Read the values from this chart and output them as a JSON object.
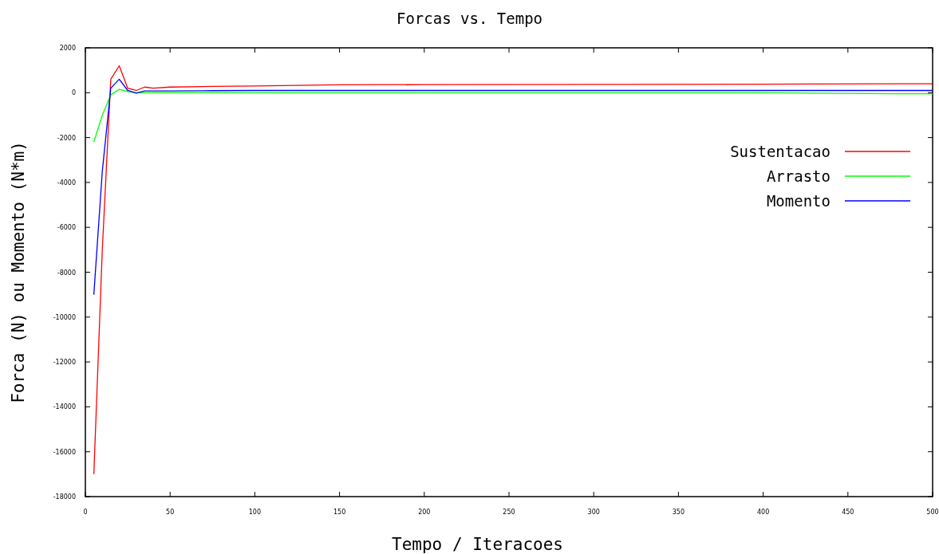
{
  "chart_data": {
    "type": "line",
    "title": "Forcas vs. Tempo",
    "xlabel": "Tempo / Iteracoes",
    "ylabel": "Forca (N) ou Momento (N*m)",
    "x": [
      5,
      10,
      15,
      20,
      25,
      30,
      35,
      40,
      50,
      75,
      100,
      150,
      200,
      300,
      400,
      480,
      500
    ],
    "series": [
      {
        "name": "Sustentacao",
        "color": "#ff0000",
        "values": [
          -17000,
          -7000,
          600,
          1200,
          200,
          100,
          250,
          200,
          250,
          280,
          300,
          350,
          360,
          370,
          380,
          400,
          400
        ]
      },
      {
        "name": "Arrasto",
        "color": "#00ff00",
        "values": [
          -2200,
          -1000,
          -100,
          150,
          50,
          0,
          0,
          0,
          0,
          0,
          0,
          0,
          0,
          0,
          0,
          -50,
          -50
        ]
      },
      {
        "name": "Momento",
        "color": "#0000ff",
        "values": [
          -9000,
          -3500,
          200,
          600,
          100,
          -20,
          80,
          80,
          80,
          90,
          100,
          100,
          100,
          100,
          100,
          100,
          100
        ]
      }
    ],
    "xlim": [
      0,
      500
    ],
    "xticks": [
      0,
      50,
      100,
      150,
      200,
      250,
      300,
      350,
      400,
      450,
      500
    ],
    "ylim": [
      -18000,
      2000
    ],
    "yticks": [
      -18000,
      -16000,
      -14000,
      -12000,
      -10000,
      -8000,
      -6000,
      -4000,
      -2000,
      0,
      2000
    ],
    "grid": false,
    "legend": "right",
    "line_style": "solid"
  }
}
